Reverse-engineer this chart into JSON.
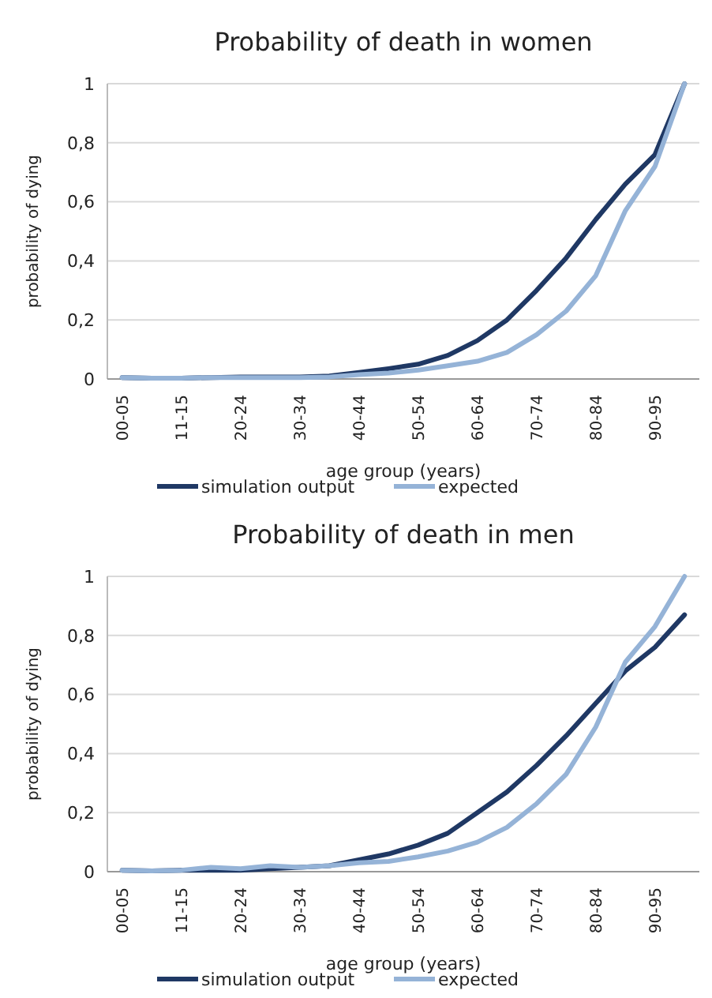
{
  "chart_data": [
    {
      "type": "line",
      "title": "Probability of death in women",
      "xlabel": "age group (years)",
      "ylabel": "probability of dying",
      "categories": [
        "00-05",
        null,
        "11-15",
        null,
        "20-24",
        null,
        "30-34",
        null,
        "40-44",
        null,
        "50-54",
        null,
        "60-64",
        null,
        "70-74",
        null,
        "80-84",
        null,
        "90-95",
        null
      ],
      "series": [
        {
          "name": "simulation output",
          "color": "#1f3864",
          "values": [
            0.005,
            0.003,
            0.003,
            0.005,
            0.007,
            0.007,
            0.007,
            0.01,
            0.022,
            0.035,
            0.05,
            0.08,
            0.13,
            0.2,
            0.3,
            0.41,
            0.54,
            0.66,
            0.76,
            1.0
          ]
        },
        {
          "name": "expected",
          "color": "#95b3d7",
          "values": [
            0.005,
            0.003,
            0.003,
            0.005,
            0.005,
            0.005,
            0.005,
            0.007,
            0.015,
            0.02,
            0.03,
            0.045,
            0.06,
            0.09,
            0.15,
            0.23,
            0.35,
            0.57,
            0.72,
            1.0
          ]
        }
      ],
      "ylim": [
        0,
        1
      ],
      "yticks": [
        {
          "value": 0,
          "label": "0"
        },
        {
          "value": 0.2,
          "label": "0,2"
        },
        {
          "value": 0.4,
          "label": "0,4"
        },
        {
          "value": 0.6,
          "label": "0,6"
        },
        {
          "value": 0.8,
          "label": "0,8"
        },
        {
          "value": 1,
          "label": "1"
        }
      ],
      "grid": "y",
      "legend": "bottom"
    },
    {
      "type": "line",
      "title": "Probability of death in men",
      "xlabel": "age group (years)",
      "ylabel": "probability of dying",
      "categories": [
        "00-05",
        null,
        "11-15",
        null,
        "20-24",
        null,
        "30-34",
        null,
        "40-44",
        null,
        "50-54",
        null,
        "60-64",
        null,
        "70-74",
        null,
        "80-84",
        null,
        "90-95",
        null
      ],
      "series": [
        {
          "name": "simulation output",
          "color": "#1f3864",
          "values": [
            0.005,
            0.003,
            0.005,
            0.005,
            0.005,
            0.01,
            0.015,
            0.02,
            0.04,
            0.06,
            0.09,
            0.13,
            0.2,
            0.27,
            0.36,
            0.46,
            0.57,
            0.68,
            0.76,
            0.87
          ]
        },
        {
          "name": "expected",
          "color": "#95b3d7",
          "values": [
            0.005,
            0.003,
            0.005,
            0.015,
            0.01,
            0.02,
            0.015,
            0.02,
            0.03,
            0.035,
            0.05,
            0.07,
            0.1,
            0.15,
            0.23,
            0.33,
            0.49,
            0.71,
            0.83,
            1.0
          ]
        }
      ],
      "ylim": [
        0,
        1
      ],
      "yticks": [
        {
          "value": 0,
          "label": "0"
        },
        {
          "value": 0.2,
          "label": "0,2"
        },
        {
          "value": 0.4,
          "label": "0,4"
        },
        {
          "value": 0.6,
          "label": "0,6"
        },
        {
          "value": 0.8,
          "label": "0,8"
        },
        {
          "value": 1,
          "label": "1"
        }
      ],
      "grid": "y",
      "legend": "bottom"
    }
  ]
}
